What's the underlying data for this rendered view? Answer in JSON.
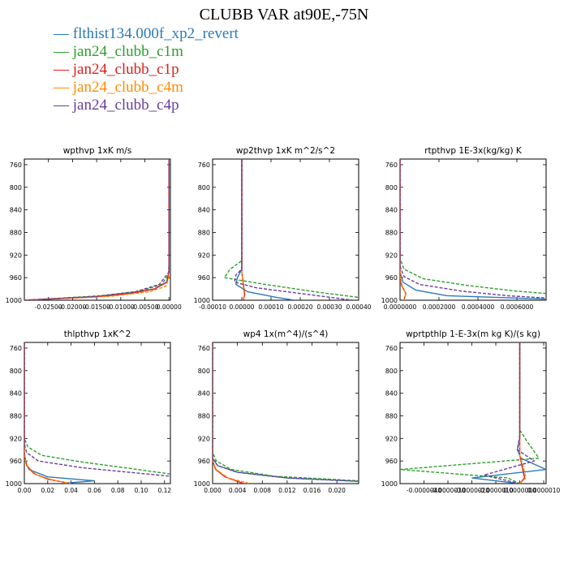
{
  "title": "CLUBB VAR at90E,-75N",
  "legend": [
    {
      "name": "flthist134.000f_xp2_revert",
      "color": "#2a7ab8"
    },
    {
      "name": "jan24_clubb_c1m",
      "color": "#2ca02c"
    },
    {
      "name": "jan24_clubb_c1p",
      "color": "#e01e1e"
    },
    {
      "name": "jan24_clubb_c4m",
      "color": "#ff8c00"
    },
    {
      "name": "jan24_clubb_c4p",
      "color": "#6a3d9a"
    }
  ],
  "chart_data": [
    {
      "type": "line",
      "title": "wpthvp   1xK m/s",
      "ylim": [
        1000,
        750
      ],
      "y_ticks": [
        760,
        800,
        840,
        880,
        920,
        960,
        1000
      ],
      "xlim": [
        -0.03,
        0.0003
      ],
      "x_ticks": [
        -0.025,
        -0.02,
        -0.015,
        -0.01,
        -0.005,
        0.0
      ],
      "x_tick_labels": [
        "-0.02500",
        "-0.02000",
        "-0.01500",
        "-0.01000",
        "-0.00500",
        "0.00000"
      ],
      "series": [
        {
          "dash": false,
          "x": [
            0,
            0,
            -0.0005,
            -0.003,
            -0.008,
            -0.015,
            -0.03
          ],
          "y": [
            750,
            950,
            968,
            980,
            988,
            994,
            1000
          ]
        },
        {
          "dash": true,
          "x": [
            0,
            0,
            -0.0001,
            -0.0015,
            -0.006,
            -0.014,
            -0.03
          ],
          "y": [
            750,
            935,
            955,
            972,
            984,
            992,
            1000
          ]
        },
        {
          "dash": false,
          "x": [
            0,
            0,
            -0.0004,
            -0.003,
            -0.008,
            -0.015,
            -0.03
          ],
          "y": [
            750,
            950,
            968,
            980,
            988,
            994,
            1000
          ]
        },
        {
          "dash": true,
          "x": [
            0,
            0,
            -0.0006,
            -0.004,
            -0.012,
            -0.03
          ],
          "y": [
            750,
            960,
            975,
            985,
            993,
            1000
          ]
        },
        {
          "dash": true,
          "x": [
            0,
            0,
            -0.002,
            -0.007,
            -0.015,
            -0.03
          ],
          "y": [
            750,
            950,
            972,
            985,
            993,
            1000
          ]
        }
      ]
    },
    {
      "type": "line",
      "title": "wp2thvp   1xK m^2/s^2",
      "ylim": [
        1000,
        750
      ],
      "y_ticks": [
        760,
        800,
        840,
        880,
        920,
        960,
        1000
      ],
      "xlim": [
        -0.0001,
        0.0004
      ],
      "x_ticks": [
        -0.0001,
        0.0,
        0.0001,
        0.0002,
        0.0003,
        0.0004
      ],
      "x_tick_labels": [
        "-0.00010",
        "0.00000",
        "0.00010",
        "0.00020",
        "0.00030",
        "0.00040"
      ],
      "series": [
        {
          "dash": false,
          "x": [
            0,
            0,
            -1.5e-05,
            -2e-05,
            2e-05,
            0.00012,
            0.00018
          ],
          "y": [
            750,
            945,
            960,
            972,
            985,
            995,
            1000
          ]
        },
        {
          "dash": true,
          "x": [
            0,
            0,
            -4e-05,
            -6e-05,
            8e-05,
            0.00025,
            0.0004
          ],
          "y": [
            750,
            930,
            945,
            960,
            972,
            985,
            995
          ]
        },
        {
          "dash": false,
          "x": [
            0,
            0,
            5e-06,
            1e-05,
            5e-06
          ],
          "y": [
            750,
            950,
            970,
            990,
            1000
          ]
        },
        {
          "dash": true,
          "x": [
            0,
            0,
            4e-06,
            8e-06,
            5e-06
          ],
          "y": [
            750,
            950,
            970,
            990,
            1000
          ]
        },
        {
          "dash": true,
          "x": [
            0,
            0,
            -2e-05,
            -2.5e-05,
            5e-05,
            0.0002,
            0.00038
          ],
          "y": [
            750,
            945,
            955,
            968,
            978,
            988,
            1000
          ]
        }
      ]
    },
    {
      "type": "line",
      "title": "rtpthvp   1E-3x(kg/kg) K",
      "ylim": [
        1000,
        750
      ],
      "y_ticks": [
        760,
        800,
        840,
        880,
        920,
        960,
        1000
      ],
      "xlim": [
        0,
        0.00075
      ],
      "x_ticks": [
        0,
        0.0002,
        0.0004,
        0.0006
      ],
      "x_tick_labels": [
        "0.0000000",
        "0.0002000",
        "0.0004000",
        "0.0006000"
      ],
      "series": [
        {
          "dash": false,
          "x": [
            0,
            0,
            1.5e-05,
            8e-05,
            0.00024,
            0.00075
          ],
          "y": [
            750,
            950,
            968,
            982,
            992,
            998
          ]
        },
        {
          "dash": true,
          "x": [
            0,
            0,
            2e-05,
            0.00012,
            0.00035,
            0.0006,
            0.00075
          ],
          "y": [
            750,
            925,
            945,
            962,
            974,
            984,
            988
          ]
        },
        {
          "dash": false,
          "x": [
            0,
            0,
            1e-05,
            3e-05,
            2e-05
          ],
          "y": [
            750,
            960,
            975,
            988,
            1000
          ]
        },
        {
          "dash": true,
          "x": [
            0,
            0,
            8e-06,
            3e-05,
            2e-05
          ],
          "y": [
            750,
            960,
            975,
            988,
            1000
          ]
        },
        {
          "dash": true,
          "x": [
            0,
            0,
            2e-05,
            0.0001,
            0.00032,
            0.00055,
            0.00075
          ],
          "y": [
            750,
            940,
            958,
            972,
            984,
            992,
            996
          ]
        }
      ]
    },
    {
      "type": "line",
      "title": "thlpthvp   1xK^2",
      "ylim": [
        1000,
        750
      ],
      "y_ticks": [
        760,
        800,
        840,
        880,
        920,
        960,
        1000
      ],
      "xlim": [
        0,
        0.125
      ],
      "x_ticks": [
        0,
        0.02,
        0.04,
        0.06,
        0.08,
        0.1,
        0.12
      ],
      "x_tick_labels": [
        "0.00",
        "0.02",
        "0.04",
        "0.06",
        "0.08",
        "0.10",
        "0.12"
      ],
      "series": [
        {
          "dash": false,
          "x": [
            0,
            0,
            0.001,
            0.004,
            0.02,
            0.06,
            0.03
          ],
          "y": [
            750,
            945,
            960,
            975,
            988,
            995,
            1000
          ]
        },
        {
          "dash": true,
          "x": [
            0,
            0,
            0.003,
            0.015,
            0.05,
            0.09,
            0.125
          ],
          "y": [
            750,
            920,
            935,
            950,
            962,
            973,
            983
          ]
        },
        {
          "dash": false,
          "x": [
            0,
            0,
            0.002,
            0.008,
            0.02,
            0.04
          ],
          "y": [
            750,
            950,
            968,
            982,
            992,
            1000
          ]
        },
        {
          "dash": true,
          "x": [
            0,
            0,
            0.003,
            0.01,
            0.025,
            0.04
          ],
          "y": [
            750,
            955,
            970,
            984,
            994,
            1000
          ]
        },
        {
          "dash": true,
          "x": [
            0,
            0,
            0.002,
            0.012,
            0.05,
            0.1,
            0.125
          ],
          "y": [
            750,
            930,
            945,
            960,
            972,
            982,
            987
          ]
        }
      ]
    },
    {
      "type": "line",
      "title": "wp4   1x(m^4)/(s^4)",
      "ylim": [
        1000,
        750
      ],
      "y_ticks": [
        760,
        800,
        840,
        880,
        920,
        960,
        1000
      ],
      "xlim": [
        0,
        0.0235
      ],
      "x_ticks": [
        0,
        0.004,
        0.008,
        0.012,
        0.016,
        0.02
      ],
      "x_tick_labels": [
        "0.000",
        "0.004",
        "0.008",
        "0.012",
        "0.016",
        "0.020"
      ],
      "series": [
        {
          "dash": false,
          "x": [
            0,
            0,
            0.0008,
            0.004,
            0.012,
            0.0235
          ],
          "y": [
            750,
            955,
            968,
            980,
            990,
            996
          ]
        },
        {
          "dash": true,
          "x": [
            0,
            0,
            0.0006,
            0.003,
            0.01,
            0.0235
          ],
          "y": [
            750,
            945,
            960,
            975,
            987,
            995
          ]
        },
        {
          "dash": false,
          "x": [
            0,
            0,
            0.0005,
            0.002,
            0.005
          ],
          "y": [
            750,
            960,
            975,
            988,
            1000
          ]
        },
        {
          "dash": true,
          "x": [
            0,
            0,
            0.0006,
            0.0025,
            0.006
          ],
          "y": [
            750,
            960,
            975,
            990,
            1000
          ]
        },
        {
          "dash": true,
          "x": [
            0,
            0,
            0.0008,
            0.004,
            0.012,
            0.0235
          ],
          "y": [
            750,
            955,
            968,
            980,
            990,
            996
          ]
        }
      ]
    },
    {
      "type": "line",
      "title": "wprtpthlp   1-E-3x(m kg K)/(s kg)",
      "ylim": [
        1000,
        750
      ],
      "y_ticks": [
        760,
        800,
        840,
        880,
        920,
        960,
        1000
      ],
      "xlim": [
        -5e-06,
        1.1e-06
      ],
      "x_ticks": [
        -4e-06,
        -3e-06,
        -2e-06,
        -1e-06,
        0.0,
        1e-06
      ],
      "x_tick_labels": [
        "-0.0000040",
        "-0.0000030",
        "-0.0000020",
        "-0.0000010",
        "0.0000000",
        "0.0000010"
      ],
      "series": [
        {
          "dash": false,
          "x": [
            0,
            0,
            -1e-07,
            5e-08,
            1.1e-06,
            -2e-06,
            0.0
          ],
          "y": [
            750,
            920,
            940,
            955,
            975,
            990,
            1000
          ]
        },
        {
          "dash": true,
          "x": [
            0,
            0,
            3e-07,
            8e-07,
            -5e-06,
            -5e-07,
            0.0
          ],
          "y": [
            750,
            905,
            925,
            955,
            975,
            990,
            1000
          ]
        },
        {
          "dash": false,
          "x": [
            0,
            0,
            1e-07,
            2e-07,
            0.0
          ],
          "y": [
            750,
            950,
            970,
            990,
            1000
          ]
        },
        {
          "dash": true,
          "x": [
            0,
            0,
            1.5e-07,
            2.5e-07,
            0.0
          ],
          "y": [
            750,
            950,
            970,
            990,
            1000
          ]
        },
        {
          "dash": true,
          "x": [
            0,
            0,
            -1e-07,
            6e-07,
            -1.5e-06,
            0.0
          ],
          "y": [
            750,
            915,
            940,
            960,
            985,
            1000
          ]
        }
      ]
    }
  ]
}
